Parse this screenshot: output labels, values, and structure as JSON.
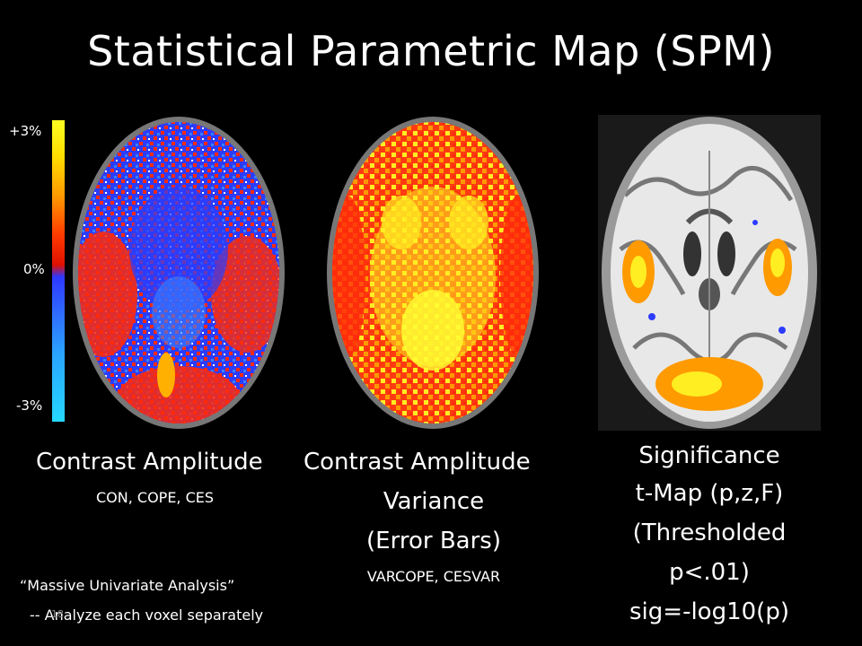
{
  "slide": {
    "title": "Statistical Parametric Map (SPM)",
    "slide_number": "18"
  },
  "colorbar": {
    "top_label": "+3%",
    "mid_label": "0%",
    "bottom_label": "-3%",
    "colors": [
      "#ffff22",
      "#ff3a00",
      "#2d38ff",
      "#25d8ff"
    ]
  },
  "panels": [
    {
      "image": "brain-contrast-amplitude-map",
      "caption": "Contrast Amplitude",
      "subcaption": "CON, COPE, CES"
    },
    {
      "image": "brain-contrast-variance-map",
      "caption_lines": [
        "Contrast Amplitude",
        "Variance",
        "(Error Bars)"
      ],
      "subcaption": "VARCOPE, CESVAR"
    },
    {
      "image": "brain-significance-tmap",
      "caption_lines": [
        "Significance",
        "t-Map (p,z,F)",
        "(Thresholded",
        "p<.01)",
        "sig=-log10(p)"
      ]
    }
  ],
  "notes": {
    "line1": "“Massive Univariate Analysis”",
    "line2": "-- Analyze each voxel separately"
  }
}
